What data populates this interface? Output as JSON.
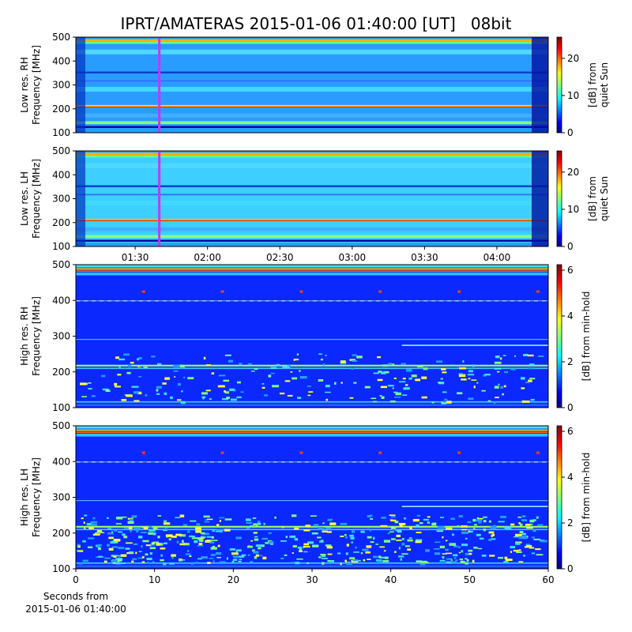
{
  "chart_data": [
    {
      "type": "heatmap",
      "title": "IPRT/AMATERAS 2015-01-06 01:40:00 [UT]   08bit",
      "ylabel": [
        "Low res. RH",
        "Frequency [MHz]"
      ],
      "ylim": [
        100,
        500
      ],
      "yticks": [
        100,
        200,
        300,
        400,
        500
      ],
      "xlim": [
        65.4,
        261.3
      ],
      "marker_x": 100,
      "marker_color": "#d030ff",
      "colorbar": {
        "label": [
          "[dB] from",
          "quiet Sun"
        ],
        "clim": [
          0,
          25.7
        ],
        "ticks": [
          0,
          10,
          20
        ]
      }
    },
    {
      "type": "heatmap",
      "ylabel": [
        "Low res. LH",
        "Frequency [MHz]"
      ],
      "ylim": [
        100,
        500
      ],
      "yticks": [
        100,
        200,
        300,
        400,
        500
      ],
      "xlim": [
        65.4,
        261.3
      ],
      "xticks": [
        {
          "value": 90,
          "label": "01:30"
        },
        {
          "value": 120,
          "label": "02:00"
        },
        {
          "value": 150,
          "label": "02:30"
        },
        {
          "value": 180,
          "label": "03:00"
        },
        {
          "value": 210,
          "label": "03:30"
        },
        {
          "value": 240,
          "label": "04:00"
        }
      ],
      "marker_x": 100,
      "marker_color": "#d030ff",
      "colorbar": {
        "label": [
          "[dB] from",
          "quiet Sun"
        ],
        "clim": [
          0,
          25.7
        ],
        "ticks": [
          0,
          10,
          20
        ]
      }
    },
    {
      "type": "heatmap",
      "ylabel": [
        "High res. RH",
        "Frequency [MHz]"
      ],
      "ylim": [
        100,
        500
      ],
      "yticks": [
        100,
        200,
        300,
        400,
        500
      ],
      "xlim": [
        0,
        60
      ],
      "colorbar": {
        "label": [
          "[dB] from min-hold"
        ],
        "clim": [
          0,
          6.24
        ],
        "ticks": [
          0,
          2,
          4,
          6
        ]
      }
    },
    {
      "type": "heatmap",
      "ylabel": [
        "High res. LH",
        "Frequency [MHz]"
      ],
      "ylim": [
        100,
        500
      ],
      "yticks": [
        100,
        200,
        300,
        400,
        500
      ],
      "xlim": [
        0,
        60
      ],
      "xticks": [
        0,
        10,
        20,
        30,
        40,
        50,
        60
      ],
      "xlabel": [
        "Seconds from",
        "2015-01-06 01:40:00"
      ],
      "colorbar": {
        "label": [
          "[dB] from min-hold"
        ],
        "clim": [
          0,
          6.24
        ],
        "ticks": [
          0,
          2,
          4,
          6
        ]
      }
    }
  ]
}
